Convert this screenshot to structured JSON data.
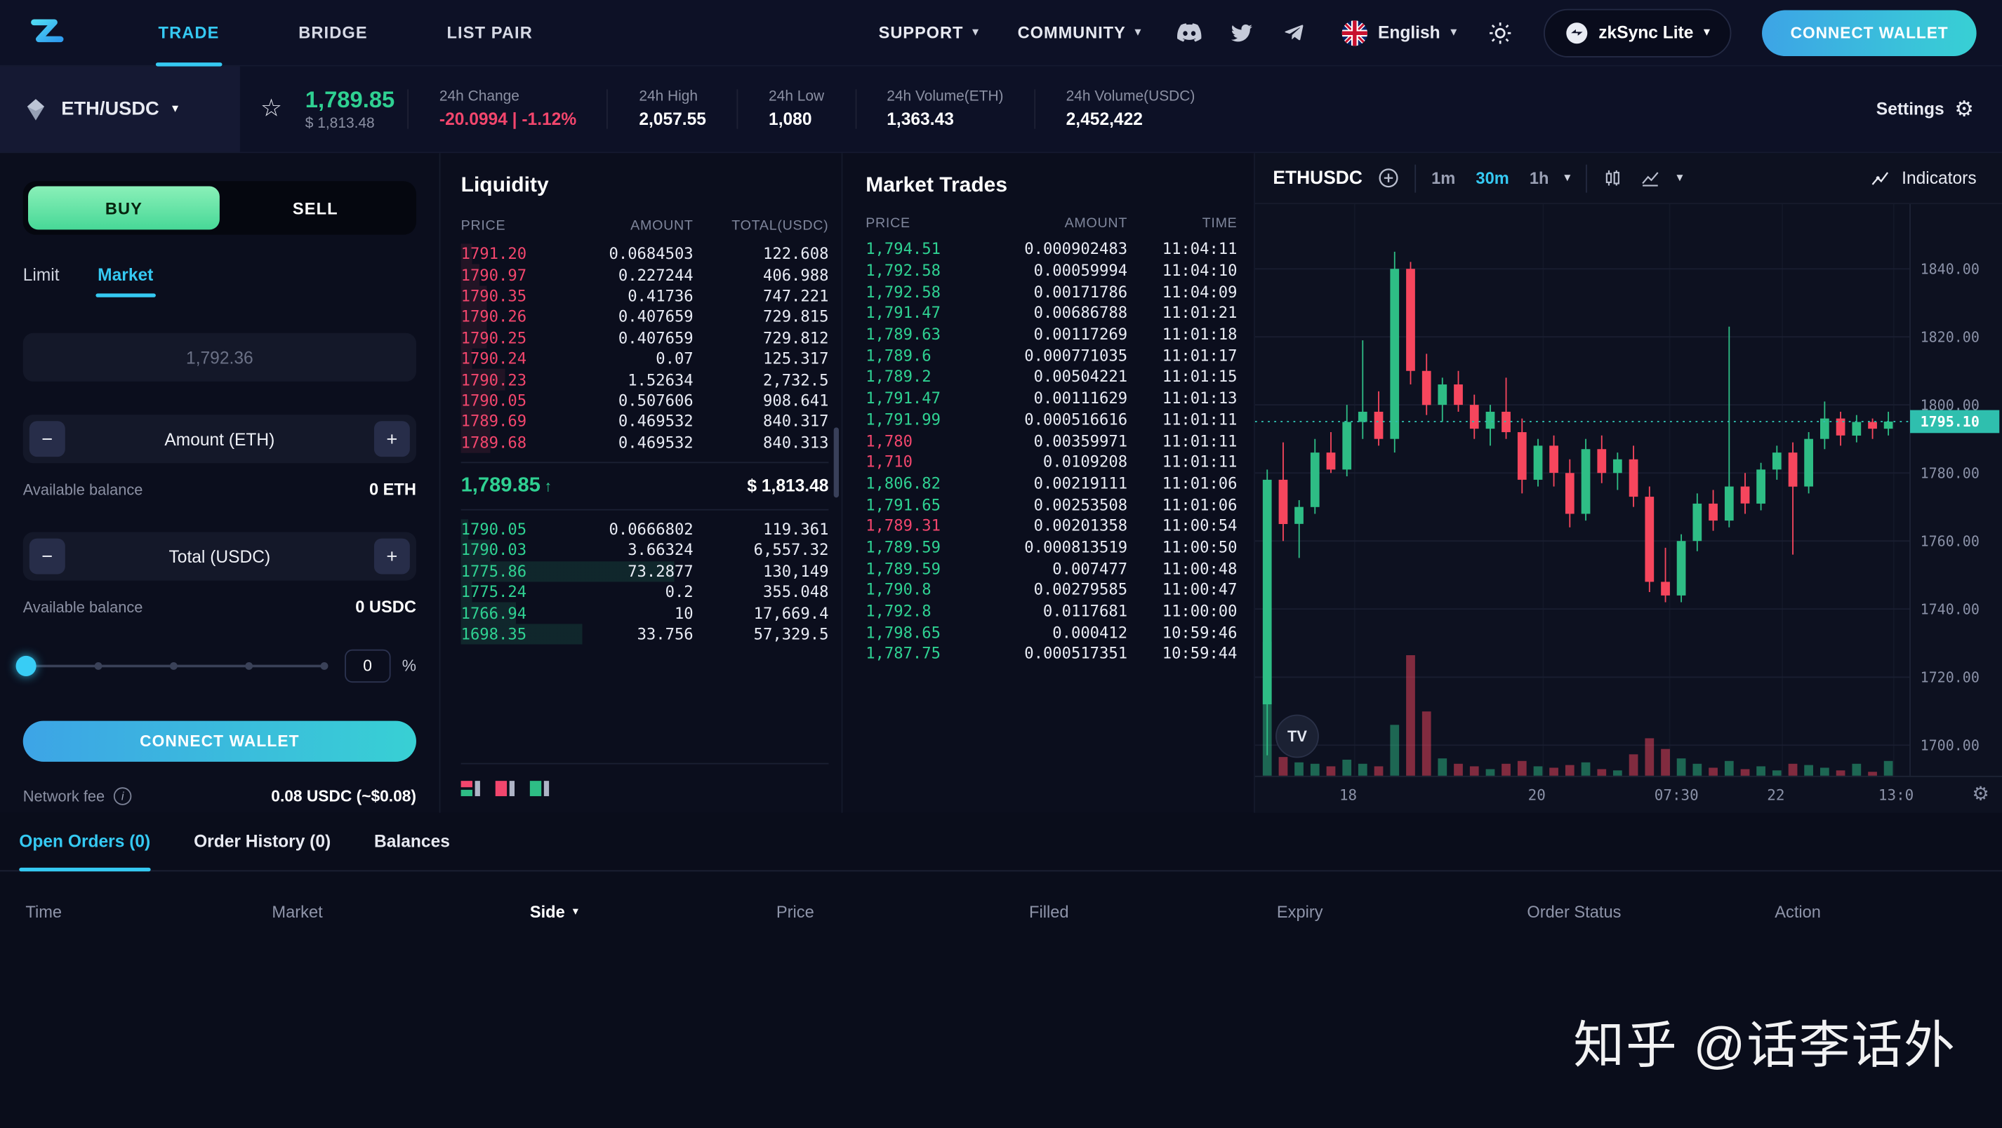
{
  "colors": {
    "accent": "#35c9f2",
    "up": "#2ebd85",
    "down": "#f6465d",
    "ask": "#f2466d",
    "bid": "#2fd192",
    "tag_teal": "#2fbfae",
    "buy_green": "#47d897"
  },
  "icons": {
    "chevron": "▾",
    "gear": "⚙",
    "star": "☆",
    "info": "i",
    "arrow_up": "↑"
  },
  "nav": {
    "items": [
      {
        "label": "TRADE",
        "active": true
      },
      {
        "label": "BRIDGE",
        "active": false
      },
      {
        "label": "LIST PAIR",
        "active": false
      }
    ],
    "menus": [
      {
        "label": "SUPPORT"
      },
      {
        "label": "COMMUNITY"
      }
    ],
    "social_icons": [
      "discord-icon",
      "twitter-icon",
      "telegram-icon"
    ],
    "language": "English",
    "network_button": "zkSync Lite",
    "connect_wallet_label": "CONNECT WALLET"
  },
  "market_header": {
    "pair": "ETH/USDC",
    "last_price": "1,789.85",
    "last_price_usd": "$ 1,813.48",
    "stats": [
      {
        "label": "24h Change",
        "value": "-20.0994 | -1.12%",
        "negative": true
      },
      {
        "label": "24h High",
        "value": "2,057.55",
        "negative": false
      },
      {
        "label": "24h Low",
        "value": "1,080",
        "negative": false
      },
      {
        "label": "24h Volume(ETH)",
        "value": "1,363.43",
        "negative": false
      },
      {
        "label": "24h Volume(USDC)",
        "value": "2,452,422",
        "negative": false
      }
    ],
    "settings_label": "Settings"
  },
  "order_form": {
    "buy_label": "BUY",
    "sell_label": "SELL",
    "type_tabs": [
      {
        "label": "Limit",
        "active": false
      },
      {
        "label": "Market",
        "active": true
      }
    ],
    "price_value": "1,792.36",
    "minus": "−",
    "plus": "+",
    "amount_label": "Amount (ETH)",
    "available_balance_label": "Available balance",
    "amount_balance": "0 ETH",
    "total_label": "Total (USDC)",
    "total_balance": "0 USDC",
    "slider_percent": "0",
    "percent_sign": "%",
    "connect_wallet_label": "CONNECT WALLET",
    "network_fee_label": "Network fee",
    "network_fee_value": "0.08 USDC (~$0.08)"
  },
  "liquidity": {
    "title": "Liquidity",
    "headers": [
      "PRICE",
      "AMOUNT",
      "TOTAL(USDC)"
    ],
    "asks": [
      {
        "price": "1791.20",
        "amount": "0.0684503",
        "total": "122.608",
        "depth": 0.03
      },
      {
        "price": "1790.97",
        "amount": "0.227244",
        "total": "406.988",
        "depth": 0.05
      },
      {
        "price": "1790.35",
        "amount": "0.41736",
        "total": "747.221",
        "depth": 0.07
      },
      {
        "price": "1790.26",
        "amount": "0.407659",
        "total": "729.815",
        "depth": 0.07
      },
      {
        "price": "1790.25",
        "amount": "0.407659",
        "total": "729.812",
        "depth": 0.07
      },
      {
        "price": "1790.24",
        "amount": "0.07",
        "total": "125.317",
        "depth": 0.03
      },
      {
        "price": "1790.23",
        "amount": "1.52634",
        "total": "2,732.5",
        "depth": 0.12
      },
      {
        "price": "1790.05",
        "amount": "0.507606",
        "total": "908.641",
        "depth": 0.08
      },
      {
        "price": "1789.69",
        "amount": "0.469532",
        "total": "840.317",
        "depth": 0.08
      },
      {
        "price": "1789.68",
        "amount": "0.469532",
        "total": "840.313",
        "depth": 0.08
      }
    ],
    "mid_price": "1,789.85",
    "mid_arrow": "↑",
    "mid_usd": "$ 1,813.48",
    "bids": [
      {
        "price": "1790.05",
        "amount": "0.0666802",
        "total": "119.361",
        "depth": 0.02
      },
      {
        "price": "1790.03",
        "amount": "3.66324",
        "total": "6,557.32",
        "depth": 0.08
      },
      {
        "price": "1775.86",
        "amount": "73.2877",
        "total": "130,149",
        "depth": 0.58
      },
      {
        "price": "1775.24",
        "amount": "0.2",
        "total": "355.048",
        "depth": 0.03
      },
      {
        "price": "1766.94",
        "amount": "10",
        "total": "17,669.4",
        "depth": 0.15
      },
      {
        "price": "1698.35",
        "amount": "33.756",
        "total": "57,329.5",
        "depth": 0.33
      }
    ]
  },
  "market_trades": {
    "title": "Market Trades",
    "headers": [
      "PRICE",
      "AMOUNT",
      "TIME"
    ],
    "rows": [
      {
        "price": "1,794.51",
        "side": "buy",
        "amount": "0.000902483",
        "time": "11:04:11"
      },
      {
        "price": "1,792.58",
        "side": "buy",
        "amount": "0.00059994",
        "time": "11:04:10"
      },
      {
        "price": "1,792.58",
        "side": "buy",
        "amount": "0.00171786",
        "time": "11:04:09"
      },
      {
        "price": "1,791.47",
        "side": "buy",
        "amount": "0.00686788",
        "time": "11:01:21"
      },
      {
        "price": "1,789.63",
        "side": "buy",
        "amount": "0.00117269",
        "time": "11:01:18"
      },
      {
        "price": "1,789.6",
        "side": "buy",
        "amount": "0.000771035",
        "time": "11:01:17"
      },
      {
        "price": "1,789.2",
        "side": "buy",
        "amount": "0.00504221",
        "time": "11:01:15"
      },
      {
        "price": "1,791.47",
        "side": "buy",
        "amount": "0.00111629",
        "time": "11:01:13"
      },
      {
        "price": "1,791.99",
        "side": "buy",
        "amount": "0.000516616",
        "time": "11:01:11"
      },
      {
        "price": "1,780",
        "side": "sell",
        "amount": "0.00359971",
        "time": "11:01:11"
      },
      {
        "price": "1,710",
        "side": "sell",
        "amount": "0.0109208",
        "time": "11:01:11"
      },
      {
        "price": "1,806.82",
        "side": "buy",
        "amount": "0.00219111",
        "time": "11:01:06"
      },
      {
        "price": "1,791.65",
        "side": "buy",
        "amount": "0.00253508",
        "time": "11:01:06"
      },
      {
        "price": "1,789.31",
        "side": "sell",
        "amount": "0.00201358",
        "time": "11:00:54"
      },
      {
        "price": "1,789.59",
        "side": "buy",
        "amount": "0.000813519",
        "time": "11:00:50"
      },
      {
        "price": "1,789.59",
        "side": "buy",
        "amount": "0.007477",
        "time": "11:00:48"
      },
      {
        "price": "1,790.8",
        "side": "buy",
        "amount": "0.00279585",
        "time": "11:00:47"
      },
      {
        "price": "1,792.8",
        "side": "buy",
        "amount": "0.0117681",
        "time": "11:00:00"
      },
      {
        "price": "1,798.65",
        "side": "buy",
        "amount": "0.000412",
        "time": "10:59:46"
      },
      {
        "price": "1,787.75",
        "side": "buy",
        "amount": "0.000517351",
        "time": "10:59:44"
      }
    ]
  },
  "chart": {
    "symbol": "ETHUSDC",
    "intervals": [
      {
        "label": "1m",
        "active": false
      },
      {
        "label": "30m",
        "active": true
      },
      {
        "label": "1h",
        "active": false
      }
    ],
    "indicators_label": "Indicators",
    "tv_label": "TV",
    "current_price_label": "1795.10",
    "chart_data": {
      "type": "candlestick",
      "title": "ETHUSDC 30m",
      "y_ticks": [
        "1840.00",
        "1820.00",
        "1800.00",
        "1780.00",
        "1760.00",
        "1740.00",
        "1720.00",
        "1700.00"
      ],
      "y_min": 1691,
      "y_max": 1859,
      "x_labels": [
        {
          "label": "18",
          "f": 0.152
        },
        {
          "label": "20",
          "f": 0.44
        },
        {
          "label": "07:30",
          "f": 0.633
        },
        {
          "label": "22",
          "f": 0.805
        },
        {
          "label": "13:0",
          "f": 0.975
        }
      ],
      "current_price": 1795.1,
      "candles": [
        [
          1712,
          1781,
          1697,
          1778,
          100
        ],
        [
          1778,
          1789,
          1760,
          1765,
          14
        ],
        [
          1765,
          1772,
          1755,
          1770,
          10
        ],
        [
          1770,
          1790,
          1768,
          1786,
          9
        ],
        [
          1786,
          1792,
          1780,
          1781,
          7
        ],
        [
          1781,
          1800,
          1779,
          1795,
          12
        ],
        [
          1795,
          1819,
          1790,
          1798,
          9
        ],
        [
          1798,
          1804,
          1788,
          1790,
          7
        ],
        [
          1790,
          1845,
          1786,
          1840,
          38
        ],
        [
          1840,
          1842,
          1806,
          1810,
          90
        ],
        [
          1810,
          1815,
          1797,
          1800,
          48
        ],
        [
          1800,
          1808,
          1795,
          1806,
          13
        ],
        [
          1806,
          1810,
          1798,
          1800,
          9
        ],
        [
          1800,
          1803,
          1790,
          1793,
          7
        ],
        [
          1793,
          1800,
          1788,
          1798,
          5
        ],
        [
          1798,
          1808,
          1790,
          1792,
          9
        ],
        [
          1792,
          1796,
          1774,
          1778,
          11
        ],
        [
          1778,
          1790,
          1776,
          1788,
          7
        ],
        [
          1788,
          1791,
          1776,
          1780,
          6
        ],
        [
          1780,
          1784,
          1764,
          1768,
          8
        ],
        [
          1768,
          1790,
          1766,
          1787,
          10
        ],
        [
          1787,
          1791,
          1777,
          1780,
          5
        ],
        [
          1780,
          1786,
          1775,
          1784,
          4
        ],
        [
          1784,
          1788,
          1770,
          1773,
          16
        ],
        [
          1773,
          1776,
          1745,
          1748,
          28
        ],
        [
          1748,
          1758,
          1742,
          1744,
          20
        ],
        [
          1744,
          1762,
          1742,
          1760,
          13
        ],
        [
          1760,
          1774,
          1757,
          1771,
          9
        ],
        [
          1771,
          1775,
          1763,
          1766,
          6
        ],
        [
          1766,
          1823,
          1764,
          1776,
          11
        ],
        [
          1776,
          1780,
          1768,
          1771,
          5
        ],
        [
          1771,
          1783,
          1769,
          1781,
          7
        ],
        [
          1781,
          1788,
          1778,
          1786,
          4
        ],
        [
          1786,
          1789,
          1756,
          1776,
          9
        ],
        [
          1776,
          1792,
          1774,
          1790,
          8
        ],
        [
          1790,
          1801,
          1787,
          1796,
          6
        ],
        [
          1796,
          1798,
          1788,
          1791,
          4
        ],
        [
          1791,
          1797,
          1789,
          1795,
          9
        ],
        [
          1795,
          1796,
          1790,
          1793,
          3
        ],
        [
          1793,
          1798,
          1791,
          1795.1,
          11
        ]
      ]
    }
  },
  "orders_panel": {
    "tabs": [
      {
        "label": "Open Orders (0)",
        "active": true
      },
      {
        "label": "Order History (0)",
        "active": false
      },
      {
        "label": "Balances",
        "active": false
      }
    ],
    "columns": [
      {
        "label": "Time",
        "sort": false
      },
      {
        "label": "Market",
        "sort": false
      },
      {
        "label": "Side",
        "sort": true
      },
      {
        "label": "Price",
        "sort": false
      },
      {
        "label": "Filled",
        "sort": false
      },
      {
        "label": "Expiry",
        "sort": false
      },
      {
        "label": "Order Status",
        "sort": false
      },
      {
        "label": "Action",
        "sort": false
      }
    ]
  },
  "watermark": "知乎 @话李话外"
}
